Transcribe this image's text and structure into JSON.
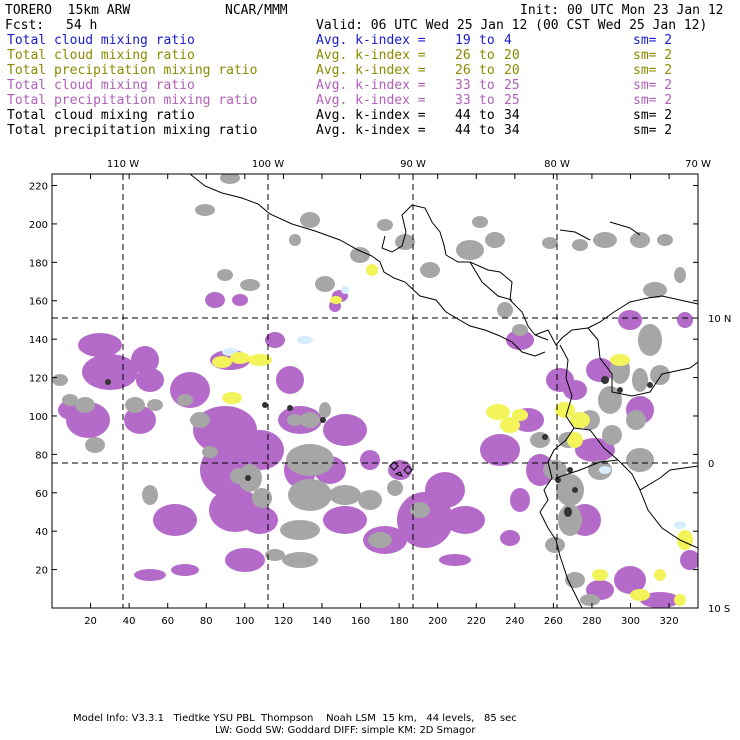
{
  "header": {
    "model": "TORERO  15km ARW",
    "org": "NCAR/MMM",
    "init": "Init: 00 UTC Mon 23 Jan 12",
    "fcst_label": "Fcst:",
    "fcst_value": "54 h",
    "valid": "Valid: 06 UTC Wed 25 Jan 12 (00 CST Wed 25 Jan 12)"
  },
  "legend": [
    {
      "field": "Total cloud mixing ratio",
      "stat": "Avg. k-index =",
      "from": "19",
      "to_word": "to",
      "to": "4",
      "sm": "sm= 2",
      "color": "#1a1acd"
    },
    {
      "field": "Total cloud mixing ratio",
      "stat": "Avg. k-index =",
      "from": "26",
      "to_word": "to",
      "to": "20",
      "sm": "sm= 2",
      "color": "#8b8b00"
    },
    {
      "field": "Total precipitation mixing ratio",
      "stat": "Avg. k-index =",
      "from": "26",
      "to_word": "to",
      "to": "20",
      "sm": "sm= 2",
      "color": "#8b8b00"
    },
    {
      "field": "Total cloud mixing ratio",
      "stat": "Avg. k-index =",
      "from": "33",
      "to_word": "to",
      "to": "25",
      "sm": "sm= 2",
      "color": "#b060b8"
    },
    {
      "field": "Total precipitation mixing ratio",
      "stat": "Avg. k-index =",
      "from": "33",
      "to_word": "to",
      "to": "25",
      "sm": "sm= 2",
      "color": "#b060b8"
    },
    {
      "field": "Total cloud mixing ratio",
      "stat": "Avg. k-index =",
      "from": "44",
      "to_word": "to",
      "to": "34",
      "sm": "sm= 2",
      "color": "#000000"
    },
    {
      "field": "Total precipitation mixing ratio",
      "stat": "Avg. k-index =",
      "from": "44",
      "to_word": "to",
      "to": "34",
      "sm": "sm= 2",
      "color": "#000000"
    }
  ],
  "map": {
    "lon_labels": [
      "110 W",
      "100 W",
      "90 W",
      "80 W",
      "70 W"
    ],
    "lat_labels": [
      "10 N",
      "0",
      "10 S"
    ],
    "y_ticks": [
      20,
      40,
      60,
      80,
      100,
      120,
      140,
      160,
      180,
      200,
      220
    ],
    "x_ticks": [
      20,
      40,
      60,
      80,
      100,
      120,
      140,
      160,
      180,
      200,
      220,
      240,
      260,
      280,
      300,
      320
    ],
    "grid_range": {
      "x": [
        0,
        335
      ],
      "y": [
        0,
        226
      ]
    },
    "colors": {
      "purple": "#b46ac8",
      "gray": "#a6a6a6",
      "dark": "#333333",
      "yellow": "#f3f35a",
      "cyan": "#d6ecff",
      "coast": "#000000"
    }
  },
  "footer": {
    "line1": "Model Info: V3.3.1   Tiedtke YSU PBL  Thompson    Noah LSM  15 km,   44 levels,   85 sec",
    "line2": "LW: Godd SW: Goddard DIFF: simple KM: 2D Smagor"
  }
}
